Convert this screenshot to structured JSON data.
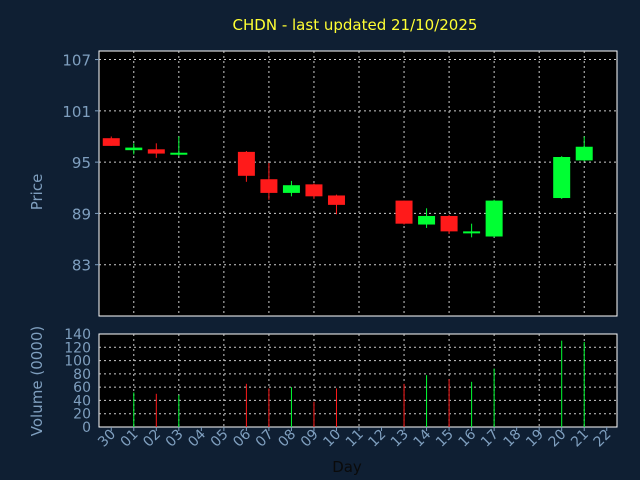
{
  "chart_data": {
    "type": "candlestick",
    "title": "CHDN - last updated 21/10/2025",
    "xlabel": "Day",
    "ylabel_price": "Price",
    "ylabel_volume": "Volume (0000)",
    "grid": true,
    "price_ylim": [
      77,
      108
    ],
    "price_ticks": [
      83,
      89,
      95,
      101,
      107
    ],
    "volume_ylim": [
      0,
      140
    ],
    "volume_ticks": [
      0,
      20,
      40,
      60,
      80,
      100,
      120,
      140
    ],
    "x_labels": [
      "30",
      "01",
      "02",
      "03",
      "04",
      "05",
      "06",
      "07",
      "08",
      "09",
      "10",
      "11",
      "12",
      "13",
      "14",
      "15",
      "16",
      "17",
      "18",
      "19",
      "20",
      "21",
      "22"
    ],
    "candles": [
      {
        "x": "30",
        "open": 97.8,
        "high": 98.0,
        "low": 96.9,
        "close": 96.9,
        "volume": 0
      },
      {
        "x": "01",
        "open": 96.4,
        "high": 97.2,
        "low": 95.9,
        "close": 96.7,
        "volume": 52
      },
      {
        "x": "02",
        "open": 96.5,
        "high": 97.2,
        "low": 95.5,
        "close": 96.0,
        "volume": 50
      },
      {
        "x": "03",
        "open": 95.9,
        "high": 98.0,
        "low": 95.7,
        "close": 96.1,
        "volume": 48
      },
      {
        "x": "06",
        "open": 96.2,
        "high": 96.3,
        "low": 92.7,
        "close": 93.4,
        "volume": 65
      },
      {
        "x": "07",
        "open": 93.0,
        "high": 94.9,
        "low": 90.6,
        "close": 91.4,
        "volume": 58
      },
      {
        "x": "08",
        "open": 91.4,
        "high": 92.8,
        "low": 91.0,
        "close": 92.3,
        "volume": 60
      },
      {
        "x": "09",
        "open": 92.4,
        "high": 92.5,
        "low": 90.7,
        "close": 91.0,
        "volume": 38
      },
      {
        "x": "10",
        "open": 91.1,
        "high": 91.2,
        "low": 88.9,
        "close": 90.0,
        "volume": 58
      },
      {
        "x": "13",
        "open": 90.5,
        "high": 90.5,
        "low": 87.7,
        "close": 87.8,
        "volume": 65
      },
      {
        "x": "14",
        "open": 87.7,
        "high": 89.6,
        "low": 87.3,
        "close": 88.7,
        "volume": 78
      },
      {
        "x": "15",
        "open": 88.7,
        "high": 88.8,
        "low": 86.6,
        "close": 86.9,
        "volume": 72
      },
      {
        "x": "16",
        "open": 86.8,
        "high": 87.8,
        "low": 86.2,
        "close": 86.9,
        "volume": 68
      },
      {
        "x": "17",
        "open": 86.3,
        "high": 90.6,
        "low": 86.2,
        "close": 90.5,
        "volume": 88
      },
      {
        "x": "20",
        "open": 90.8,
        "high": 95.7,
        "low": 90.7,
        "close": 95.6,
        "volume": 130
      },
      {
        "x": "21",
        "open": 95.2,
        "high": 98.0,
        "low": 95.1,
        "close": 96.8,
        "volume": 128
      }
    ]
  }
}
